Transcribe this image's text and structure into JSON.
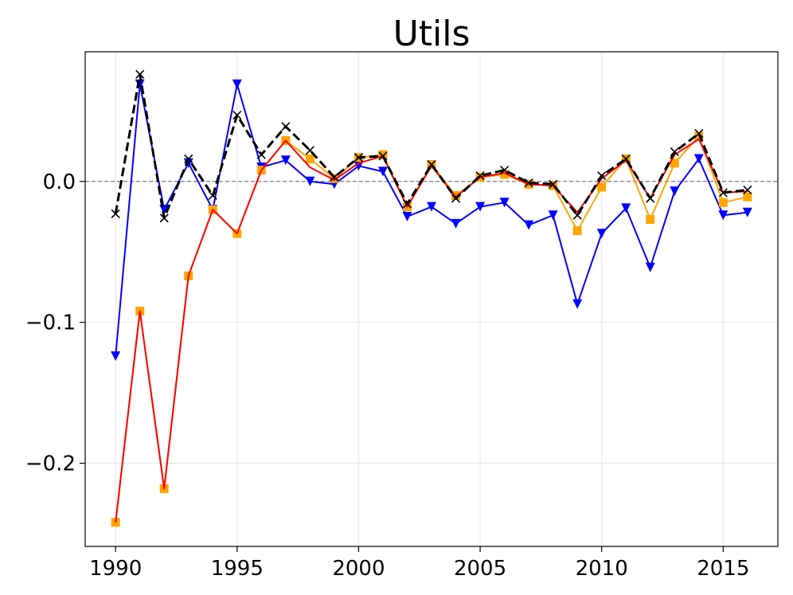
{
  "chart_data": {
    "type": "line",
    "title": "Utils",
    "xlabel": "",
    "ylabel": "",
    "xlim": [
      1988.75,
      2017.25
    ],
    "ylim": [
      -0.259,
      0.092
    ],
    "xticks": [
      1990,
      1995,
      2000,
      2005,
      2010,
      2015
    ],
    "yticks": [
      -0.2,
      -0.1,
      0.0
    ],
    "ytick_labels": [
      "−0.2",
      "−0.1",
      "0.0"
    ],
    "grid": true,
    "reference_line": {
      "y": 0.0,
      "style": "dashed",
      "color": "#808080"
    },
    "x": [
      1990,
      1991,
      1992,
      1993,
      1994,
      1995,
      1996,
      1997,
      1998,
      1999,
      2000,
      2001,
      2002,
      2003,
      2004,
      2005,
      2006,
      2007,
      2008,
      2009,
      2010,
      2011,
      2012,
      2013,
      2014,
      2015,
      2016
    ],
    "series": [
      {
        "color": "#0000ff",
        "marker": "triangle-down",
        "linestyle": "solid",
        "values": [
          -0.124,
          0.069,
          -0.02,
          0.013,
          -0.02,
          0.069,
          0.01,
          0.015,
          0.0,
          -0.002,
          0.011,
          0.007,
          -0.025,
          -0.018,
          -0.03,
          -0.018,
          -0.015,
          -0.031,
          -0.024,
          -0.087,
          -0.037,
          -0.019,
          -0.061,
          -0.007,
          0.016,
          -0.024,
          -0.022
        ]
      },
      {
        "color": "#ffa500",
        "marker": "square",
        "linestyle": "solid",
        "values": [
          -0.242,
          -0.092,
          -0.218,
          -0.067,
          -0.02,
          -0.037,
          0.008,
          0.029,
          0.016,
          0.002,
          0.017,
          0.019,
          -0.018,
          0.012,
          -0.01,
          0.003,
          0.005,
          -0.002,
          -0.003,
          -0.035,
          -0.004,
          0.016,
          -0.027,
          0.013,
          0.032,
          -0.015,
          -0.011
        ]
      },
      {
        "color": "#ff0000",
        "marker": "none",
        "linestyle": "solid",
        "values": [
          -0.242,
          -0.092,
          -0.218,
          -0.067,
          -0.02,
          -0.037,
          0.008,
          0.029,
          0.01,
          0.001,
          0.013,
          0.018,
          -0.018,
          0.011,
          -0.011,
          0.003,
          0.006,
          -0.002,
          -0.003,
          -0.022,
          0.002,
          0.015,
          -0.012,
          0.019,
          0.03,
          -0.008,
          -0.007
        ]
      },
      {
        "color": "#000000",
        "marker": "x",
        "linestyle": "dashed",
        "values": [
          -0.023,
          0.076,
          -0.026,
          0.016,
          -0.01,
          0.047,
          0.019,
          0.039,
          0.022,
          0.003,
          0.017,
          0.018,
          -0.016,
          0.012,
          -0.012,
          0.004,
          0.008,
          -0.001,
          -0.002,
          -0.024,
          0.004,
          0.016,
          -0.012,
          0.021,
          0.034,
          -0.008,
          -0.006
        ]
      }
    ]
  }
}
